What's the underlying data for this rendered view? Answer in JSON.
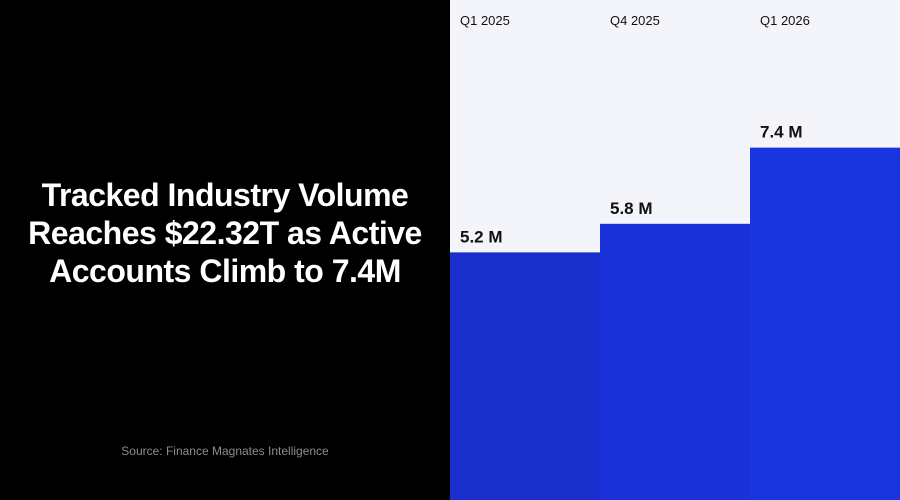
{
  "headline": "Tracked Industry Volume Reaches $22.32T as Active Accounts Climb to 7.4M",
  "source": "Source: Finance Magnates Intelligence",
  "colors": {
    "left_bg": "#000000",
    "chart_bg": "#f4f5fb",
    "bars": [
      "#1a2ecc",
      "#1a30d8",
      "#1a34e0"
    ]
  },
  "chart_data": {
    "type": "bar",
    "categories": [
      "Q1 2025",
      "Q4 2025",
      "Q1 2026"
    ],
    "values": [
      5.2,
      5.8,
      7.4
    ],
    "value_labels": [
      "5.2 M",
      "5.8 M",
      "7.4 M"
    ],
    "ylim": [
      0,
      10.5
    ],
    "title": "",
    "xlabel": "",
    "ylabel": "",
    "grid": false
  }
}
